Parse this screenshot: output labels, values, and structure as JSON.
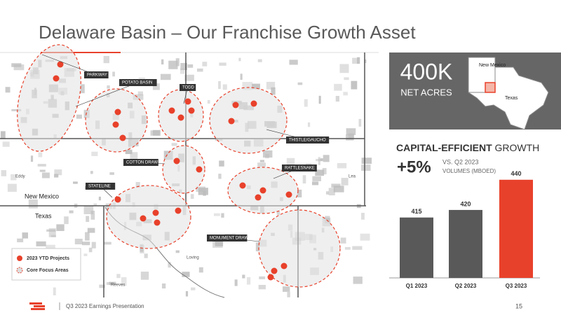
{
  "header": {
    "title": "Delaware Basin – Our Franchise Growth Asset"
  },
  "map": {
    "areas": [
      "PARKWAY",
      "POTATO BASIN",
      "TODD",
      "THISTLE/GAUCHO",
      "COTTON DRAW",
      "RATTLESNAKE",
      "STATELINE",
      "MONUMENT DRAW"
    ],
    "places": [
      "Eddy",
      "Lea",
      "New Mexico",
      "Texas",
      "Loving",
      "Reeves"
    ],
    "legend": [
      "2023 YTD Projects",
      "Core Focus Areas"
    ]
  },
  "inset": {
    "value": "400K",
    "label": "NET ACRES",
    "states": [
      "New Mexico",
      "Texas"
    ]
  },
  "chart_data": {
    "type": "bar",
    "title": "CAPITAL-EFFICIENT",
    "title_suffix": "GROWTH",
    "change": "+5%",
    "change_note": [
      "VS. Q2 2023",
      "VOLUMES (MBOED)"
    ],
    "categories": [
      "Q1 2023",
      "Q2 2023",
      "Q3 2023"
    ],
    "values": [
      415,
      420,
      440
    ],
    "colors": [
      "#595959",
      "#595959",
      "#e8412b"
    ],
    "ylim": [
      375,
      445
    ]
  },
  "footer": {
    "text": "Q3 2023 Earnings Presentation",
    "page": "15"
  }
}
